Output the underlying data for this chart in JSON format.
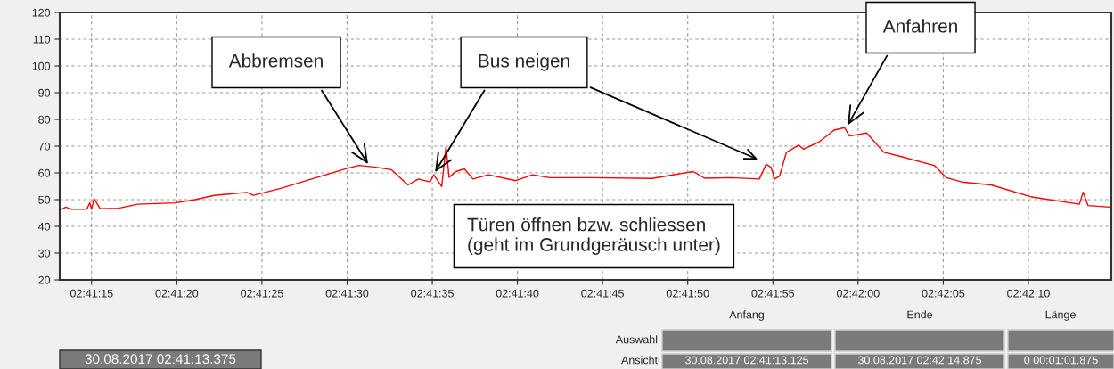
{
  "chart_data": {
    "type": "line",
    "x": [
      2.68699,
      2.68708,
      2.68717,
      2.68742,
      2.68747,
      2.6875,
      2.68754,
      2.68764,
      2.68794,
      2.68825,
      2.68886,
      2.68917,
      2.6895,
      2.69003,
      2.69014,
      2.69061,
      2.6911,
      2.69167,
      2.69186,
      2.69211,
      2.69239,
      2.69266,
      2.69283,
      2.69302,
      2.69308,
      2.69321,
      2.69328,
      2.69333,
      2.69344,
      2.69358,
      2.69372,
      2.69397,
      2.69442,
      2.69469,
      2.69497,
      2.69567,
      2.69664,
      2.69731,
      2.6975,
      2.69792,
      2.69839,
      2.6985,
      2.69858,
      2.69864,
      2.69872,
      2.69883,
      2.69903,
      2.69911,
      2.69936,
      2.69961,
      2.69978,
      2.69986,
      2.70014,
      2.70042,
      2.70072,
      2.70125,
      2.70144,
      2.70169,
      2.70217,
      2.70281,
      2.70361,
      2.70367,
      2.70375,
      2.70411
    ],
    "series": [
      {
        "color": "#ff0000",
        "values": [
          46.1,
          47.2,
          46.4,
          46.4,
          48.8,
          46.4,
          50.4,
          46.6,
          46.8,
          48.3,
          48.8,
          49.9,
          51.6,
          52.7,
          51.6,
          54.4,
          57.8,
          61.7,
          62.8,
          62.2,
          61.2,
          55.5,
          57.7,
          56.6,
          59.3,
          54.9,
          69.9,
          58.3,
          60.5,
          61.5,
          57.7,
          59.3,
          57.1,
          59.3,
          58.2,
          58.2,
          57.9,
          60.5,
          58,
          58.2,
          57.7,
          63.2,
          62.1,
          57.7,
          58.8,
          67.6,
          70.4,
          68.9,
          71.5,
          76,
          76.9,
          73.8,
          74.9,
          67.7,
          66,
          62.7,
          58.2,
          56.6,
          55.5,
          51.1,
          48.3,
          52.8,
          47.8,
          47.2
        ]
      }
    ],
    "xlim": [
      2.68698,
      2.70413
    ],
    "xticks": [
      {
        "value": 2.6875,
        "label": "02:41:15"
      },
      {
        "value": 2.688889,
        "label": "02:41:20"
      },
      {
        "value": 2.690278,
        "label": "02:41:25"
      },
      {
        "value": 2.691667,
        "label": "02:41:30"
      },
      {
        "value": 2.693056,
        "label": "02:41:35"
      },
      {
        "value": 2.694444,
        "label": "02:41:40"
      },
      {
        "value": 2.695833,
        "label": "02:41:45"
      },
      {
        "value": 2.697222,
        "label": "02:41:50"
      },
      {
        "value": 2.698611,
        "label": "02:41:55"
      },
      {
        "value": 2.7,
        "label": "02:42:00"
      },
      {
        "value": 2.701389,
        "label": "02:42:05"
      },
      {
        "value": 2.702778,
        "label": "02:42:10"
      }
    ],
    "ylim": [
      20,
      120
    ],
    "yticks": [
      20,
      30,
      40,
      50,
      60,
      70,
      80,
      90,
      100,
      110,
      120
    ],
    "grid": true,
    "line_style": "solid",
    "annotations": [
      {
        "text": "Abbremsen",
        "x": 2.69203,
        "y": 62.5
      },
      {
        "text": "Bus neigen",
        "x": 2.69308,
        "y": 59.5
      },
      {
        "text": "Anfahren",
        "x": 2.69981,
        "y": 77
      },
      "Türen öffnen bzw. schliessen\n(geht im Grundgeräusch unter)",
      "Anfang",
      "Ende",
      "Länge",
      "Auswahl",
      "Ansicht",
      "30.08.2017 02:41:13.125",
      "30.08.2017 02:42:14.875",
      "0 00:01:01.875",
      "30.08.2017 02:41:13.375"
    ]
  }
}
